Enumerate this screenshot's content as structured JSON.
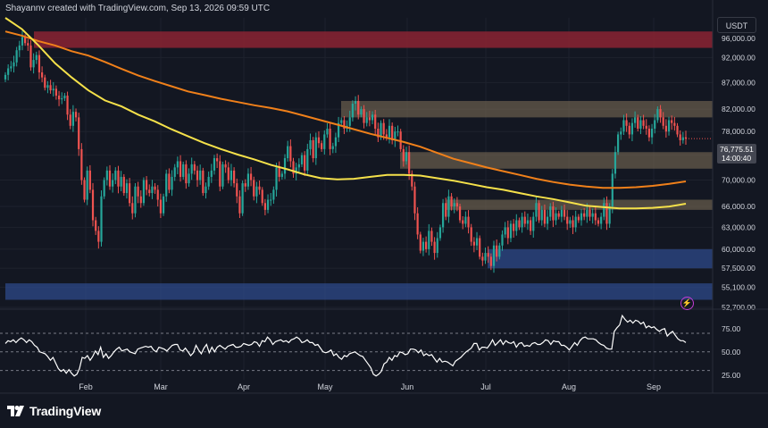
{
  "header": {
    "text": "Shayannv created with TradingView.com, Sep 13, 2026 09:59 UTC"
  },
  "currency": "USDT",
  "last_price": {
    "value": "76,775.51",
    "countdown": "14:00:40"
  },
  "footer": {
    "brand": "TradingView"
  },
  "colors": {
    "background": "#131722",
    "up": "#26a69a",
    "down": "#ef5350",
    "ma_fast": "#f5e14a",
    "ma_slow": "#f0801a",
    "rsi_line": "#ffffff",
    "supply_zone": "#8b2333",
    "resistance_zone": "#7a6a55",
    "demand_zone": "#2e4a8a"
  },
  "chart_data": [
    {
      "type": "candlestick",
      "y_scale": "log",
      "ylim": [
        52700,
        100500
      ],
      "y_ticks": [
        "96,000.00",
        "92,000.00",
        "87,000.00",
        "82,000.00",
        "78,000.00",
        "74,000.00",
        "70,000.00",
        "66,000.00",
        "63,000.00",
        "60,000.00",
        "57,500.00",
        "55,100.00",
        "52,700.00"
      ],
      "x_labels": [
        "Feb",
        "Mar",
        "Apr",
        "May",
        "Jun",
        "Jul",
        "Aug",
        "Sep"
      ],
      "close": [
        88500,
        89800,
        90200,
        91000,
        93500,
        94500,
        96300,
        95000,
        94500,
        90000,
        91500,
        92500,
        89000,
        88000,
        86000,
        86500,
        85500,
        85800,
        84500,
        83800,
        84000,
        84500,
        81000,
        79000,
        81500,
        80500,
        75000,
        70000,
        67000,
        71500,
        68500,
        64000,
        62500,
        61000,
        67500,
        70000,
        71500,
        69000,
        70000,
        71500,
        69000,
        70500,
        68000,
        69500,
        66500,
        65000,
        69000,
        67500,
        66500,
        70000,
        68500,
        68000,
        69000,
        68500,
        67000,
        65000,
        67500,
        71000,
        68500,
        70500,
        72000,
        73000,
        70500,
        72500,
        69500,
        71000,
        72500,
        71500,
        70000,
        71500,
        68000,
        69000,
        70500,
        71500,
        73500,
        73000,
        69000,
        72500,
        72000,
        70000,
        71500,
        69500,
        67500,
        65000,
        69500,
        69000,
        71000,
        70000,
        67500,
        69000,
        68500,
        66500,
        65500,
        67000,
        67000,
        68500,
        72000,
        70500,
        71000,
        73500,
        75500,
        73000,
        71000,
        72000,
        72500,
        74000,
        71500,
        75000,
        76500,
        73500,
        77000,
        76000,
        75000,
        77500,
        78500,
        75000,
        75500,
        77000,
        79500,
        80000,
        78500,
        79000,
        80500,
        83000,
        83500,
        81000,
        82000,
        79500,
        80500,
        80000,
        81000,
        78500,
        77000,
        79500,
        77500,
        77000,
        79000,
        76500,
        78000,
        78000,
        75000,
        73000,
        74500,
        71000,
        69000,
        65000,
        62000,
        59800,
        61000,
        60000,
        62500,
        61000,
        59500,
        61500,
        63000,
        66500,
        64500,
        67500,
        66000,
        66500,
        66000,
        64000,
        63500,
        64500,
        63000,
        61000,
        60500,
        61500,
        59000,
        58500,
        59500,
        59000,
        57800,
        60500,
        59000,
        60500,
        62000,
        63000,
        61500,
        63500,
        62500,
        64000,
        63000,
        64500,
        63500,
        64000,
        62500,
        64500,
        66500,
        64000,
        65500,
        63500,
        64500,
        66000,
        64000,
        65000,
        64500,
        65500,
        64500,
        63500,
        64000,
        63000,
        64500,
        64000,
        65000,
        64500,
        65500,
        64500,
        65000,
        64000,
        63500,
        64500,
        66500,
        63500,
        66000,
        71000,
        74500,
        77500,
        78000,
        80000,
        79000,
        77500,
        79500,
        80500,
        78500,
        80000,
        79000,
        78500,
        77000,
        78500,
        80000,
        82000,
        80500,
        79000,
        78000,
        80000,
        79500,
        79000,
        77500,
        76500,
        77000,
        76775.51
      ]
    },
    {
      "type": "zones",
      "zones": [
        {
          "name": "supply-zone",
          "y_range": [
            94000,
            97500
          ]
        },
        {
          "name": "resistance-zone-82k",
          "y_range": [
            80500,
            83500
          ]
        },
        {
          "name": "resistance-zone-74k",
          "y_range": [
            71800,
            74500
          ]
        },
        {
          "name": "resistance-zone-66k",
          "y_range": [
            65500,
            67000
          ]
        },
        {
          "name": "demand-zone-58k",
          "y_range": [
            57500,
            60000
          ]
        },
        {
          "name": "demand-zone-54k",
          "y_range": [
            53600,
            55600
          ]
        }
      ]
    },
    {
      "type": "line",
      "series": [
        {
          "key": "ma_slow",
          "values": [
            97500,
            96600,
            95400,
            94500,
            93300,
            92400,
            91100,
            89700,
            88400,
            87300,
            86300,
            85300,
            84600,
            83900,
            83300,
            82700,
            82200,
            81600,
            80800,
            80000,
            79200,
            78400,
            77600,
            76900,
            76200,
            75400,
            74400,
            73400,
            72700,
            72000,
            71400,
            70800,
            70200,
            69700,
            69300,
            69000,
            68800,
            68800,
            68900,
            69100,
            69400,
            69800
          ]
        },
        {
          "key": "ma_fast",
          "values": [
            100500,
            98000,
            94500,
            90800,
            88000,
            85500,
            83600,
            82500,
            81000,
            79800,
            78400,
            77200,
            76000,
            75000,
            74100,
            73300,
            72400,
            71700,
            70900,
            70300,
            70100,
            70200,
            70500,
            70800,
            70800,
            70700,
            70300,
            69900,
            69400,
            68900,
            68500,
            68000,
            67500,
            67100,
            66600,
            66100,
            65900,
            65700,
            65700,
            65800,
            66000,
            66400
          ]
        }
      ]
    },
    {
      "type": "line",
      "name": "rsi",
      "ylim": [
        20,
        95
      ],
      "y_ticks": [
        "75.00",
        "50.00",
        "25.00"
      ],
      "levels": [
        70,
        50,
        30
      ],
      "values": [
        59,
        62,
        61,
        63,
        60,
        63,
        65,
        63,
        60,
        63,
        61,
        57,
        55,
        50,
        49,
        48,
        45,
        41,
        44,
        38,
        32,
        29,
        31,
        27,
        31,
        27,
        24,
        26,
        32,
        44,
        43,
        46,
        41,
        45,
        51,
        47,
        55,
        44,
        48,
        43,
        46,
        50,
        53,
        55,
        51,
        52,
        53,
        50,
        49,
        48,
        53,
        54,
        55,
        56,
        55,
        56,
        52,
        50,
        55,
        54,
        53,
        51,
        54,
        57,
        58,
        58,
        52,
        51,
        54,
        50,
        46,
        49,
        57,
        52,
        48,
        54,
        58,
        49,
        55,
        50,
        55,
        57,
        55,
        53,
        56,
        57,
        58,
        55,
        55,
        56,
        59,
        58,
        57,
        58,
        61,
        60,
        56,
        62,
        61,
        66,
        63,
        58,
        61,
        62,
        63,
        61,
        62,
        60,
        63,
        64,
        66,
        64,
        60,
        61,
        63,
        60,
        60,
        57,
        58,
        54,
        50,
        49,
        50,
        52,
        46,
        48,
        44,
        42,
        46,
        45,
        48,
        49,
        50,
        48,
        46,
        45,
        41,
        37,
        33,
        26,
        24,
        26,
        29,
        37,
        39,
        44,
        41,
        46,
        45,
        50,
        49,
        47,
        48,
        53,
        53,
        52,
        49,
        52,
        46,
        48,
        46,
        47,
        43,
        39,
        43,
        39,
        40,
        39,
        37,
        35,
        40,
        42,
        44,
        47,
        50,
        52,
        54,
        59,
        59,
        52,
        55,
        55,
        54,
        58,
        63,
        57,
        60,
        63,
        58,
        62,
        60,
        59,
        61,
        55,
        59,
        60,
        56,
        57,
        56,
        59,
        60,
        58,
        58,
        60,
        63,
        62,
        58,
        62,
        61,
        61,
        57,
        57,
        55,
        52,
        56,
        60,
        57,
        62,
        65,
        66,
        64,
        64,
        64,
        63,
        60,
        58,
        57,
        54,
        53,
        53,
        72,
        76,
        79,
        89,
        85,
        82,
        84,
        81,
        84,
        83,
        80,
        82,
        76,
        78,
        76,
        77,
        74,
        72,
        74,
        75,
        67,
        70,
        72,
        68,
        64,
        62,
        62,
        60
      ]
    }
  ]
}
